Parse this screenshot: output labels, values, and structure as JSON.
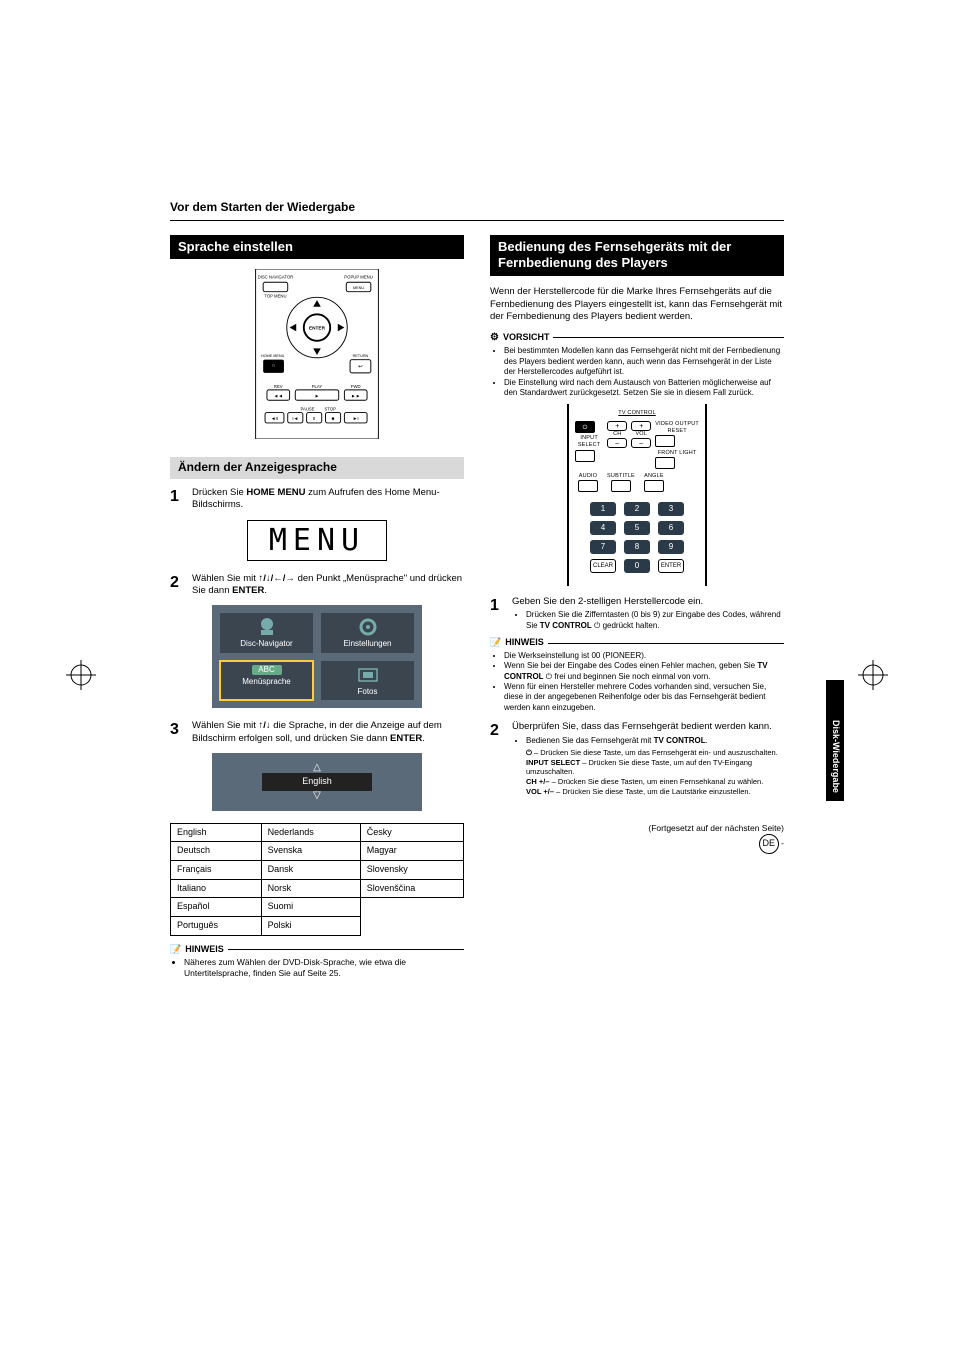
{
  "page_header": "Vor dem Starten der Wiedergabe",
  "side_tab": "Disk-Wiedergabe",
  "left": {
    "section_title": "Sprache einstellen",
    "remote_labels": {
      "disc_nav": "DISC NAVIGATOR",
      "top_menu": "TOP MENU",
      "popup": "POPUP MENU",
      "menu": "MENU",
      "enter": "ENTER",
      "home_menu": "HOME MENU",
      "return": "RETURN",
      "rev": "REV",
      "play": "PLAY",
      "fwd": "FWD",
      "pause": "PAUSE",
      "stop": "STOP"
    },
    "subhead": "Ändern der Anzeigesprache",
    "step1_num": "1",
    "step1_text_a": "Drücken Sie ",
    "step1_bold": "HOME MENU",
    "step1_text_b": " zum Aufrufen des Home Menu-Bildschirms.",
    "menu_display": "MENU",
    "step2_num": "2",
    "step2_text_a": "Wählen Sie mit ",
    "step2_arrows": "↑/↓/←/→",
    "step2_text_b": " den Punkt „Menüsprache\" und drücken Sie dann ",
    "step2_bold": "ENTER",
    "step2_text_c": ".",
    "tiles": {
      "t1": "Disc-Navigator",
      "t2": "Einstellungen",
      "t3": "Menüsprache",
      "t3_badge": "ABC",
      "t4": "Fotos"
    },
    "step3_num": "3",
    "step3_text_a": "Wählen Sie mit ",
    "step3_arrows": "↑/↓",
    "step3_text_b": " die Sprache, in der die Anzeige auf dem Bildschirm erfolgen soll, und drücken Sie dann ",
    "step3_bold": "ENTER",
    "step3_text_c": ".",
    "lang_selected": "English",
    "lang_table": [
      [
        "English",
        "Nederlands",
        "Česky"
      ],
      [
        "Deutsch",
        "Svenska",
        "Magyar"
      ],
      [
        "Français",
        "Dansk",
        "Slovensky"
      ],
      [
        "Italiano",
        "Norsk",
        "Slovenščina"
      ],
      [
        "Español",
        "Suomi",
        ""
      ],
      [
        "Português",
        "Polski",
        ""
      ]
    ],
    "note_label": "HINWEIS",
    "note1": "Näheres zum Wählen der DVD-Disk-Sprache, wie etwa die Untertitelsprache, finden Sie auf Seite 25."
  },
  "right": {
    "section_title": "Bedienung des Fernsehgeräts mit der Fernbedienung des Players",
    "intro": "Wenn der Herstellercode für die Marke Ihres Fernsehgeräts auf die Fernbedienung des Players eingestellt ist, kann das Fernsehgerät mit der Fernbedienung des Players bedient werden.",
    "caution_label": "VORSICHT",
    "caution_items": [
      "Bei bestimmten Modellen kann das Fernsehgerät nicht mit der Fernbedienung des Players bedient werden kann, auch wenn das Fernsehgerät in der Liste der Herstellercodes aufgeführt ist.",
      "Die Einstellung wird nach dem Austausch von Batterien möglicherweise auf den Standardwert zurückgesetzt. Setzen Sie sie in diesem Fall zurück."
    ],
    "tv_remote": {
      "header": "TV CONTROL",
      "ch": "CH",
      "vol": "VOL",
      "input": "INPUT SELECT",
      "video_out": "VIDEO OUTPUT RESET",
      "audio": "AUDIO",
      "subtitle": "SUBTITLE",
      "angle": "ANGLE",
      "front": "FRONT LIGHT",
      "nums": [
        "1",
        "2",
        "3",
        "4",
        "5",
        "6",
        "7",
        "8",
        "9",
        "0"
      ],
      "clear": "CLEAR",
      "enter": "ENTER"
    },
    "step1_num": "1",
    "step1_text": "Geben Sie den 2-stelligen Herstellercode ein.",
    "step1_sub_a": "Drücken Sie die Zifferntasten (0 bis 9) zur Eingabe des Codes, während Sie ",
    "step1_sub_bold": "TV CONTROL",
    "step1_sub_b": " ⏻ gedrückt halten.",
    "note_label": "HINWEIS",
    "notes": [
      "Die Werkseinstellung ist 00 (PIONEER).",
      "Wenn Sie bei der Eingabe des Codes einen Fehler machen, geben Sie TV CONTROL ⏻ frei und beginnen Sie noch einmal von vorn.",
      "Wenn für einen Hersteller mehrere Codes vorhanden sind, versuchen Sie, diese in der angegebenen Reihenfolge oder bis das Fernsehgerät bedient werden kann einzugeben."
    ],
    "step2_num": "2",
    "step2_text": "Überprüfen Sie, dass das Fernsehgerät bedient werden kann.",
    "step2_sub_lead_a": "Bedienen Sie das Fernsehgerät mit ",
    "step2_sub_lead_bold": "TV CONTROL",
    "step2_sub_lead_b": ".",
    "step2_lines": [
      {
        "k": "⏻",
        "v": " – Drücken Sie diese Taste, um das Fernsehgerät ein- und auszuschalten."
      },
      {
        "k": "INPUT SELECT",
        "v": " – Drücken Sie diese Taste, um auf den TV-Eingang umzuschalten."
      },
      {
        "k": "CH +/–",
        "v": " – Drücken Sie diese Tasten, um einen Fernsehkanal zu wählen."
      },
      {
        "k": "VOL +/–",
        "v": " – Drücken Sie diese Taste, um die Lautstärke einzustellen."
      }
    ],
    "continued": "(Fortgesetzt auf der nächsten Seite)",
    "page_marker": "DE"
  },
  "colors": {
    "tile_bg": "#5a6a78",
    "tile_cell": "#3a4550",
    "tile_highlight": "#ffcc33",
    "numbtn": "#2a3a48"
  }
}
